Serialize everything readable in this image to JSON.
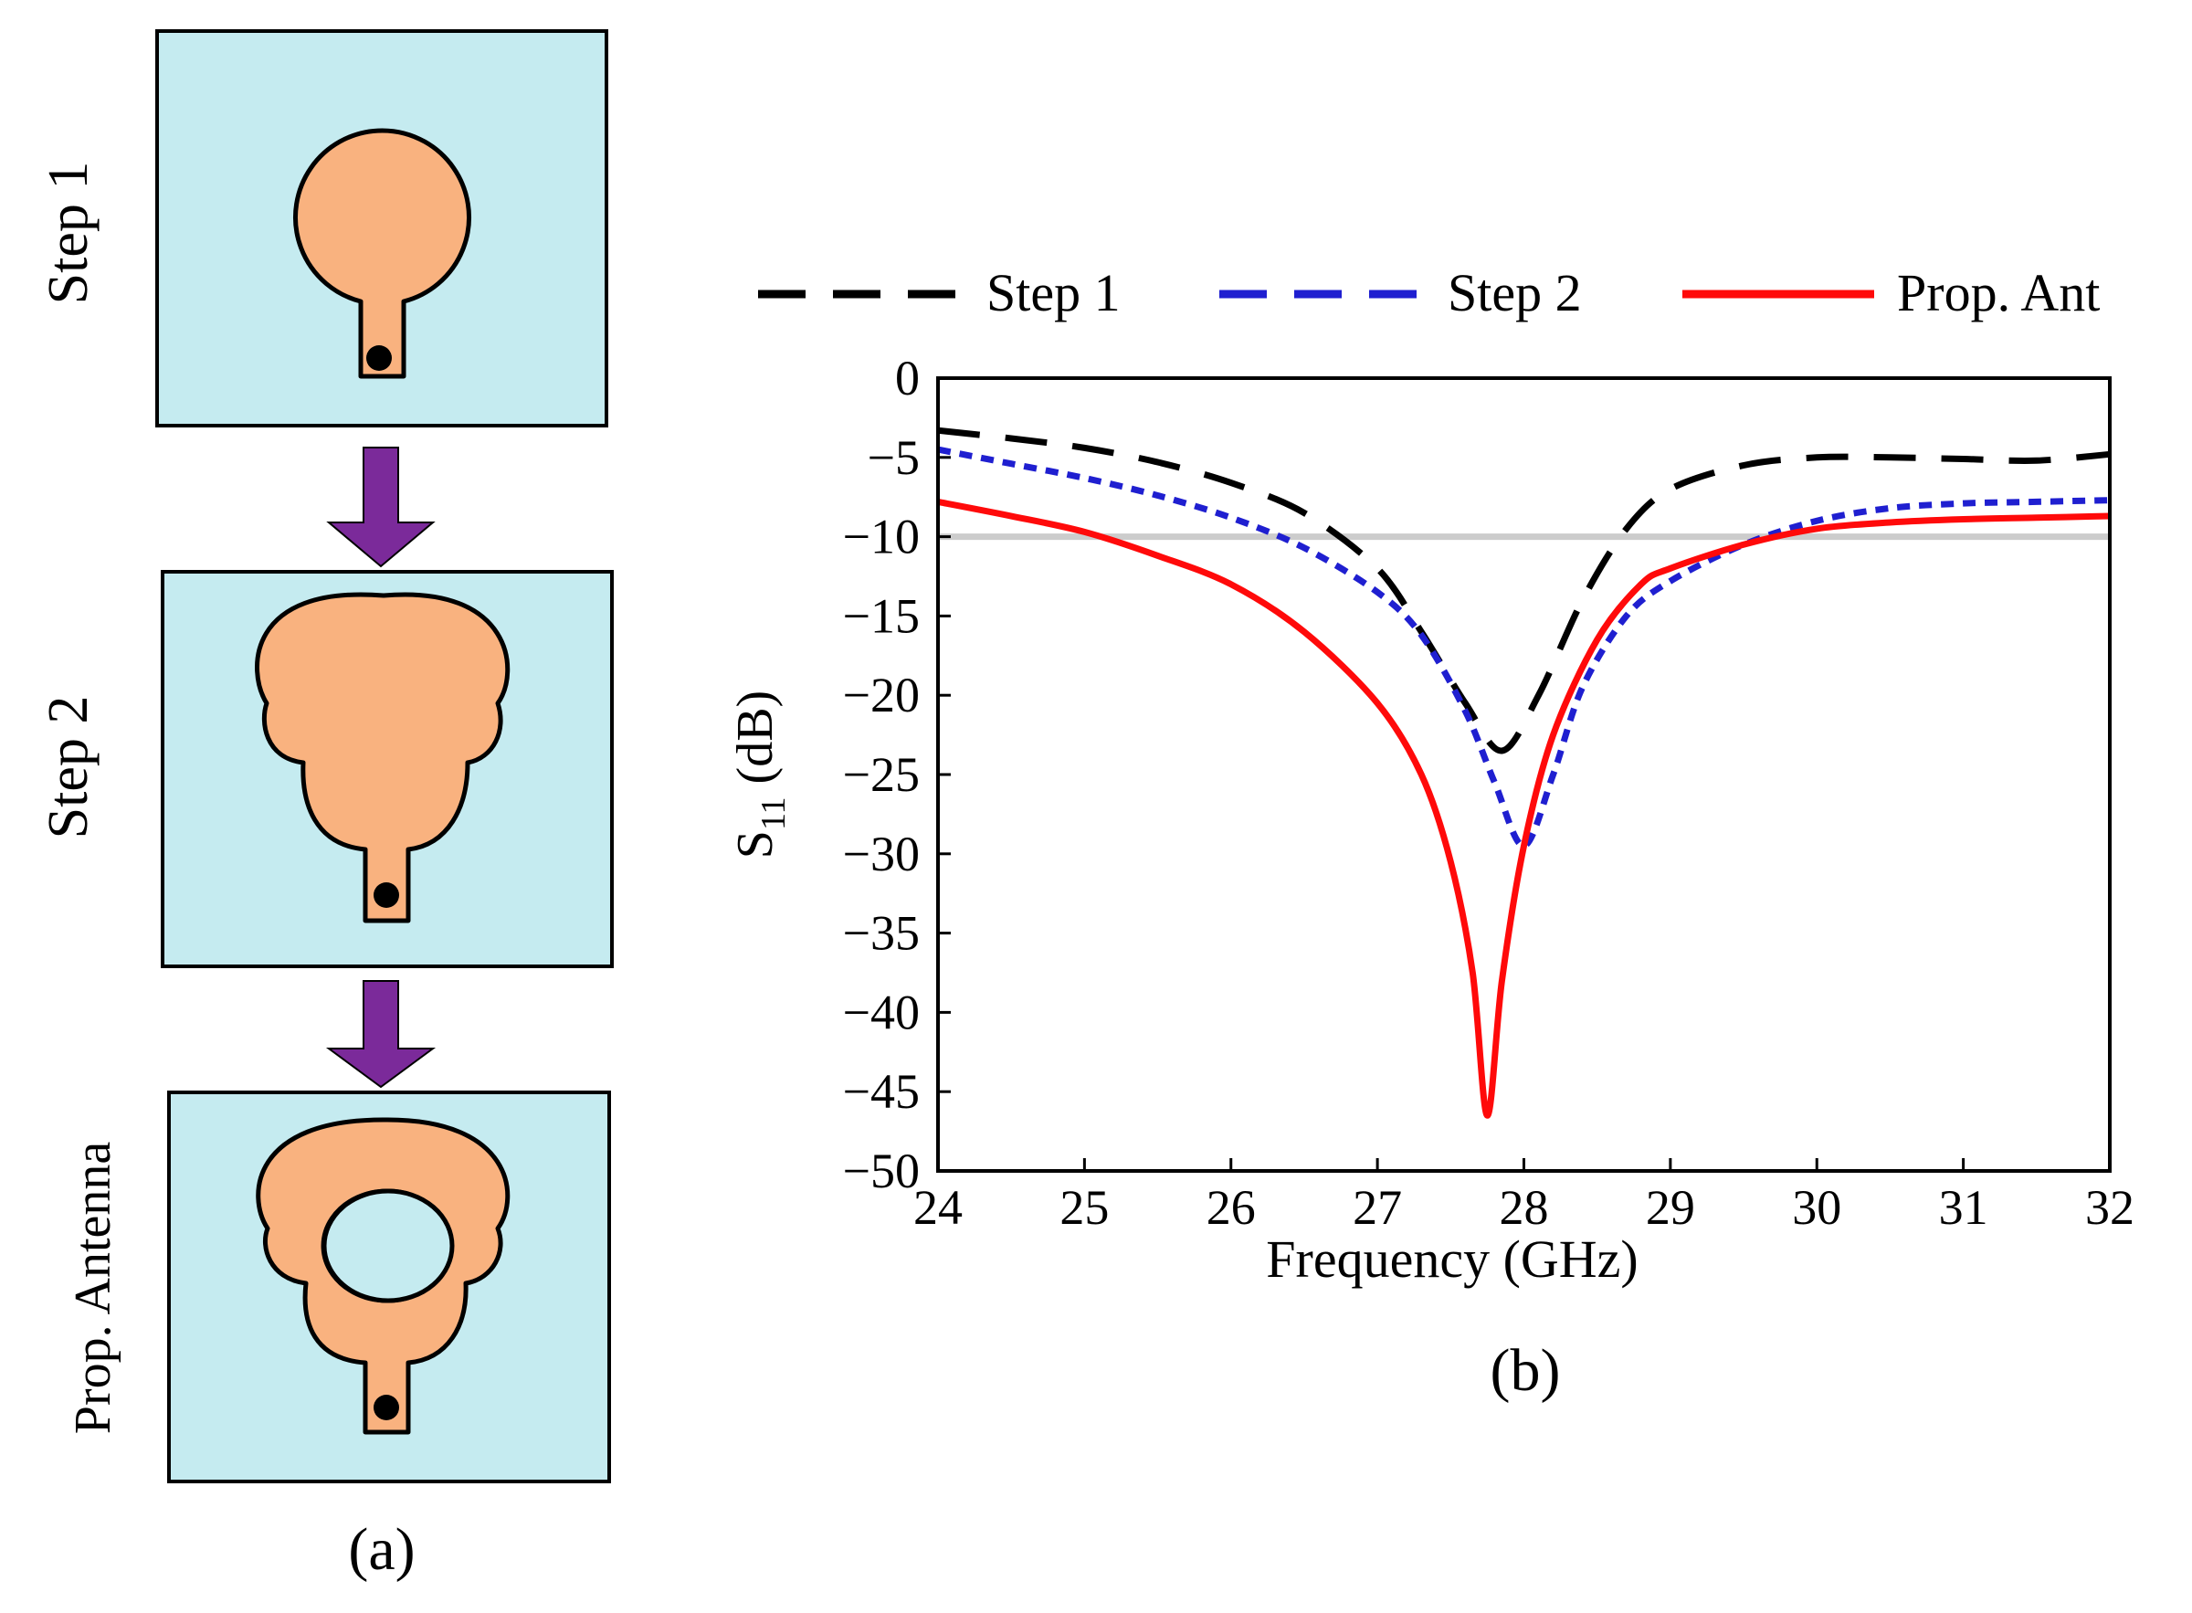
{
  "panel_a": {
    "steps": [
      {
        "label": "Step 1",
        "shape": "circle-patch"
      },
      {
        "label": "Step 2",
        "shape": "two-lobe-patch"
      },
      {
        "label": "Prop. Antenna",
        "shape": "two-lobe-patch-with-slot"
      }
    ],
    "caption": "(a)",
    "colors": {
      "substrate": "#c5ebf0",
      "patch": "#f9b27f",
      "arrow": "#7b2a9a",
      "feed_dot": "#000000"
    }
  },
  "chart_data": {
    "type": "line",
    "title": "",
    "xlabel": "Frequency (GHz)",
    "ylabel_main": "S",
    "ylabel_sub": "11",
    "ylabel_unit": " (dB)",
    "caption": "(b)",
    "xlim": [
      24,
      32
    ],
    "ylim": [
      -50,
      0
    ],
    "xticks": [
      24,
      25,
      26,
      27,
      28,
      29,
      30,
      31,
      32
    ],
    "yticks": [
      0,
      -5,
      -10,
      -15,
      -20,
      -25,
      -30,
      -35,
      -40,
      -45,
      -50
    ],
    "ytick_labels": [
      "0",
      "−5",
      "−10",
      "−15",
      "−20",
      "−25",
      "−30",
      "−35",
      "−40",
      "−45",
      "−50"
    ],
    "reference_line": {
      "y": -10,
      "color": "#cccccc"
    },
    "legend_position": "top",
    "series": [
      {
        "name": "Step 1",
        "color": "#000000",
        "style": "dashed",
        "x": [
          24,
          24.5,
          25,
          25.5,
          26,
          26.5,
          27,
          27.3,
          27.6,
          27.85,
          28.1,
          28.4,
          28.7,
          29,
          29.5,
          30,
          30.5,
          31,
          31.5,
          32
        ],
        "y": [
          -3.3,
          -3.8,
          -4.4,
          -5.3,
          -6.6,
          -8.5,
          -12.0,
          -16.0,
          -20.5,
          -23.5,
          -20.0,
          -14.0,
          -9.5,
          -7.0,
          -5.5,
          -5.0,
          -5.0,
          -5.1,
          -5.2,
          -4.8
        ]
      },
      {
        "name": "Step 2",
        "color": "#1f1fd0",
        "style": "dotted",
        "x": [
          24,
          24.5,
          25,
          25.5,
          26,
          26.5,
          27,
          27.3,
          27.6,
          27.8,
          28.0,
          28.2,
          28.4,
          28.7,
          29,
          29.5,
          30,
          30.5,
          31,
          31.5,
          32
        ],
        "y": [
          -4.5,
          -5.4,
          -6.3,
          -7.4,
          -8.8,
          -10.7,
          -13.5,
          -16.2,
          -21.0,
          -25.5,
          -29.5,
          -25.0,
          -19.5,
          -15.0,
          -12.8,
          -10.5,
          -9.0,
          -8.2,
          -7.9,
          -7.8,
          -7.7
        ]
      },
      {
        "name": "Prop. Ant",
        "color": "#ff0a0a",
        "style": "solid",
        "x": [
          24,
          24.5,
          25,
          25.5,
          26,
          26.5,
          27,
          27.3,
          27.5,
          27.65,
          27.75,
          27.85,
          28.0,
          28.2,
          28.5,
          28.8,
          29,
          29.5,
          30,
          30.5,
          31,
          31.5,
          32
        ],
        "y": [
          -7.8,
          -8.7,
          -9.7,
          -11.2,
          -13.0,
          -16.0,
          -20.5,
          -25.0,
          -30.5,
          -37.5,
          -46.5,
          -38.0,
          -29.5,
          -22.5,
          -16.5,
          -13.0,
          -12.0,
          -10.5,
          -9.5,
          -9.1,
          -8.9,
          -8.8,
          -8.7
        ]
      }
    ]
  }
}
